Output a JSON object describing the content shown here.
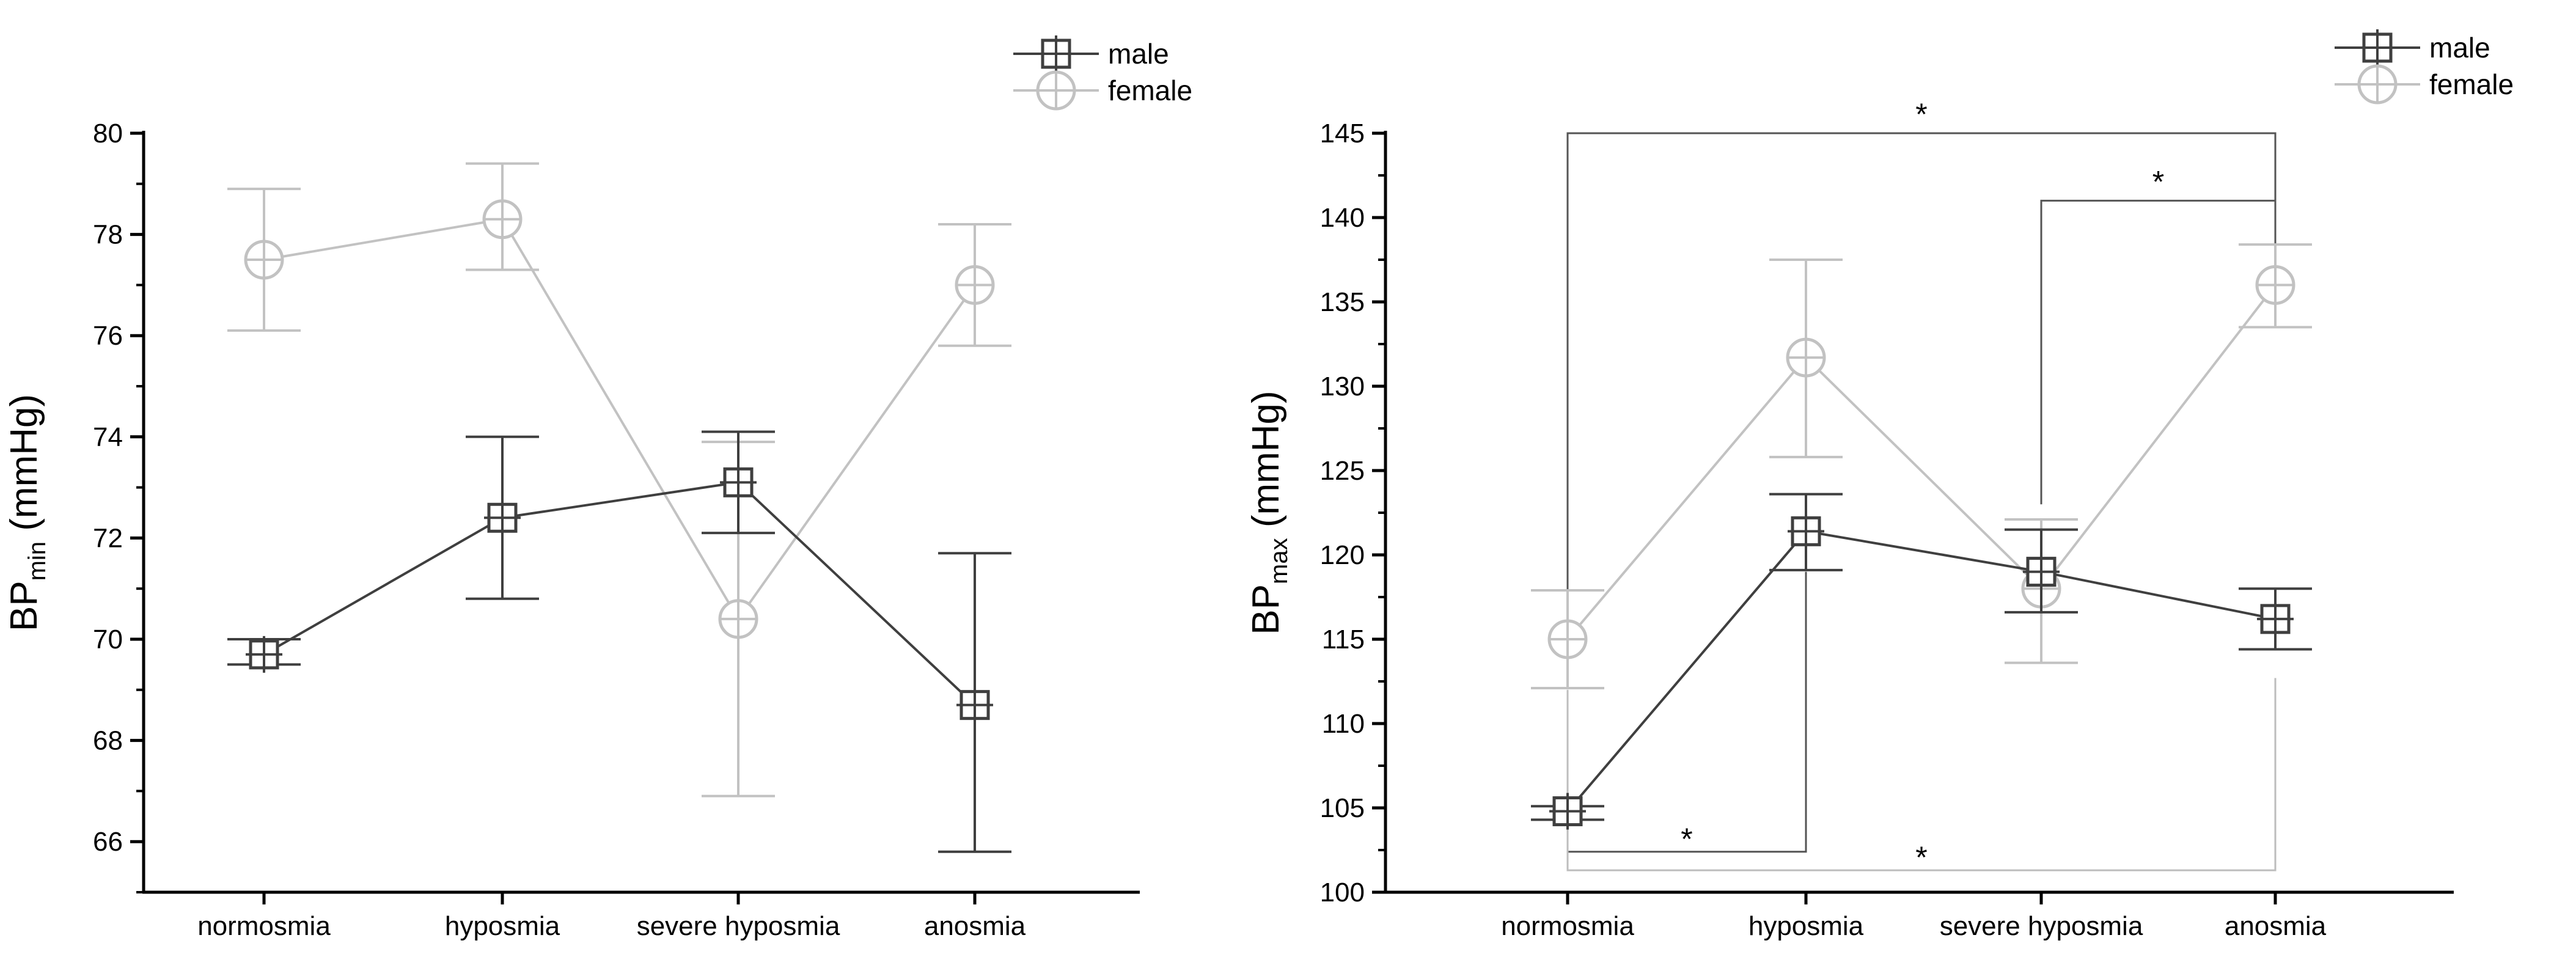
{
  "colors": {
    "male": "#3f3f3f",
    "female": "#c2c2c2",
    "axis": "#000000",
    "sig": "#555555",
    "sigLight": "#bdbdbd"
  },
  "chart_data": [
    {
      "type": "line",
      "categories": [
        "normosmia",
        "hyposmia",
        "severe hyposmia",
        "anosmia"
      ],
      "ylabel": {
        "main": "BP",
        "sub": "min",
        "unit": " (mmHg)"
      },
      "ylim": [
        65,
        80
      ],
      "yticks": [
        66,
        68,
        70,
        72,
        74,
        76,
        78,
        80
      ],
      "legend": "top-right",
      "grid": false,
      "series": [
        {
          "name": "male",
          "marker": "square",
          "values": [
            69.7,
            72.4,
            73.1,
            68.7
          ],
          "err_low": [
            69.5,
            70.8,
            72.1,
            65.8
          ],
          "err_high": [
            70.0,
            74.0,
            74.1,
            71.7
          ]
        },
        {
          "name": "female",
          "marker": "circle",
          "values": [
            77.5,
            78.3,
            70.4,
            77.0
          ],
          "err_low": [
            76.1,
            77.3,
            66.9,
            75.8
          ],
          "err_high": [
            78.9,
            79.4,
            73.9,
            78.2
          ]
        }
      ],
      "significance": []
    },
    {
      "type": "line",
      "categories": [
        "normosmia",
        "hyposmia",
        "severe hyposmia",
        "anosmia"
      ],
      "ylabel": {
        "main": "BP",
        "sub": "max",
        "unit": " (mmHg)"
      },
      "ylim": [
        100,
        145
      ],
      "yticks": [
        100,
        105,
        110,
        115,
        120,
        125,
        130,
        135,
        140,
        145
      ],
      "legend": "top-right",
      "grid": false,
      "series": [
        {
          "name": "male",
          "marker": "square",
          "values": [
            104.8,
            121.4,
            119.0,
            116.2
          ],
          "err_low": [
            104.3,
            119.1,
            116.6,
            114.4
          ],
          "err_high": [
            105.1,
            123.6,
            121.5,
            118.0
          ]
        },
        {
          "name": "female",
          "marker": "circle",
          "values": [
            115.0,
            131.7,
            118.0,
            136.0
          ],
          "err_low": [
            112.1,
            125.8,
            113.6,
            133.5
          ],
          "err_high": [
            117.9,
            137.5,
            122.1,
            138.4
          ]
        }
      ],
      "significance": [
        {
          "label": "*",
          "from": 0,
          "to": 3,
          "level": 145,
          "side": "top",
          "drop_from": 117.9,
          "drop_to": 138.4,
          "tone": "dark"
        },
        {
          "label": "*",
          "from": 2,
          "to": 3,
          "level": 141,
          "side": "top",
          "drop_from": 123.0,
          "drop_to": 139.0,
          "tone": "dark"
        },
        {
          "label": "*",
          "from": 0,
          "to": 1,
          "level": 102.4,
          "side": "bottom",
          "drop_from": 103.9,
          "drop_to": 119.0,
          "tone": "dark"
        },
        {
          "label": "*",
          "from": 0,
          "to": 3,
          "level": 101.3,
          "side": "bottom",
          "drop_from": 112.0,
          "drop_to": 112.7,
          "tone": "light"
        }
      ]
    }
  ]
}
